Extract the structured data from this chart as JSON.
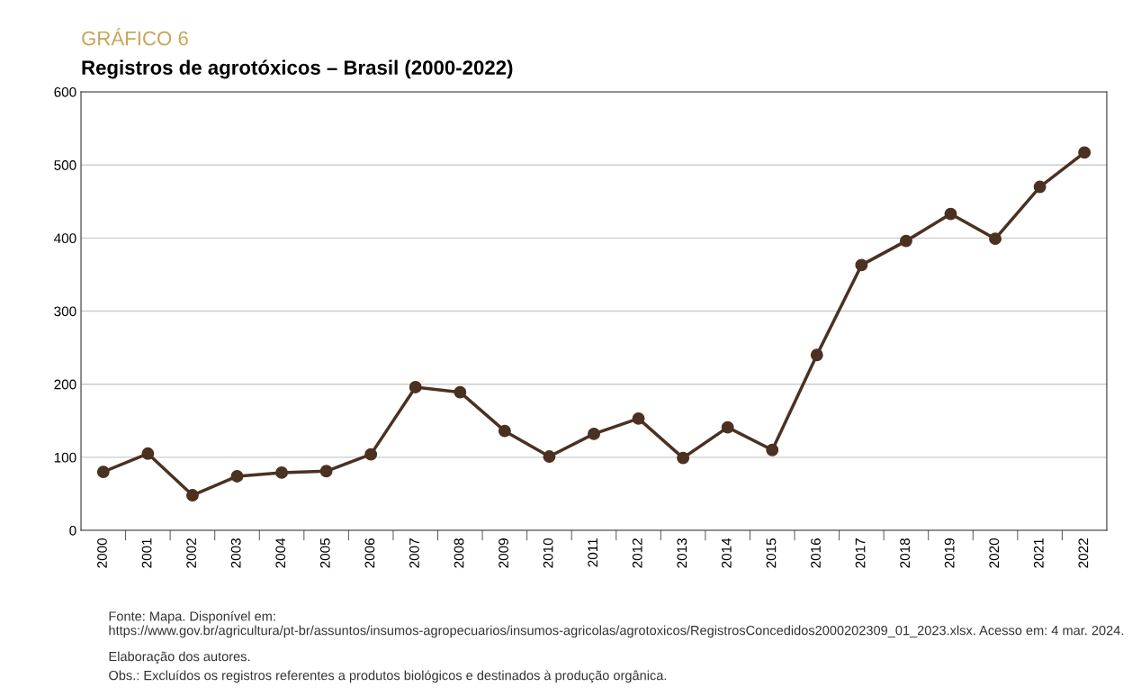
{
  "chart_data": {
    "type": "line",
    "subtitle": "GRÁFICO 6",
    "title": "Registros de agrotóxicos – Brasil (2000-2022)",
    "categories": [
      "2000",
      "2001",
      "2002",
      "2003",
      "2004",
      "2005",
      "2006",
      "2007",
      "2008",
      "2009",
      "2010",
      "2011",
      "2012",
      "2013",
      "2014",
      "2015",
      "2016",
      "2017",
      "2018",
      "2019",
      "2020",
      "2021",
      "2022"
    ],
    "series": [
      {
        "color": "#4b3121",
        "values": [
          80,
          105,
          48,
          74,
          79,
          81,
          104,
          196,
          189,
          136,
          101,
          132,
          153,
          99,
          141,
          110,
          240,
          363,
          396,
          433,
          399,
          470,
          517
        ]
      }
    ],
    "ylim": [
      0,
      600
    ],
    "yticks": [
      0,
      100,
      200,
      300,
      400,
      500,
      600
    ],
    "grid": "y",
    "marker": "circle",
    "line_style": "solid",
    "annotations": [
      "Fonte: Mapa. Disponível em: https://www.gov.br/agricultura/pt-br/assuntos/insumos-agropecuarios/insumos-agricolas/agrotoxicos/RegistrosConcedidos2000202309_01_2023.xlsx. Acesso em: 4 mar. 2024.",
      "Elaboração dos autores.",
      "Obs.: Excluídos os registros referentes a produtos biológicos e destinados à produção orgânica."
    ]
  }
}
